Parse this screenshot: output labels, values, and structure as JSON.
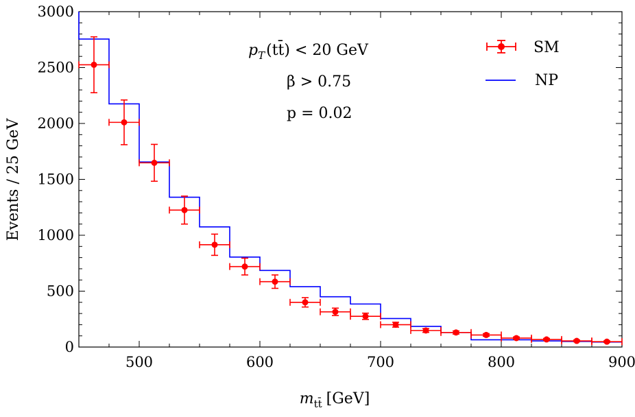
{
  "chart_data": {
    "type": "scatter",
    "title": "",
    "xlabel": "m",
    "xlabel_subscript": "tt̄",
    "xlabel_unit": "[GeV]",
    "ylabel": "Events / 25 GeV",
    "xlim": [
      450,
      900
    ],
    "ylim": [
      0,
      3000
    ],
    "x_ticks": [
      500,
      600,
      700,
      800,
      900
    ],
    "y_ticks": [
      0,
      500,
      1000,
      1500,
      2000,
      2500,
      3000
    ],
    "grid": false,
    "legend_position": "top-right",
    "annotations": {
      "cut1": "p",
      "cut1_sub": "T",
      "cut1_arg": "(tt̄) < 20 GeV",
      "cut2": "β > 0.75",
      "cut3": "p = 0.02"
    },
    "series": [
      {
        "name": "SM",
        "kind": "points_with_errors",
        "color": "#ff0000",
        "x": [
          462.5,
          487.5,
          512.5,
          537.5,
          562.5,
          587.5,
          612.5,
          637.5,
          662.5,
          687.5,
          712.5,
          737.5,
          762.5,
          787.5,
          812.5,
          837.5,
          862.5,
          887.5
        ],
        "y": [
          2525,
          2010,
          1648,
          1225,
          915,
          720,
          585,
          400,
          315,
          275,
          200,
          148,
          130,
          108,
          80,
          68,
          55,
          48
        ],
        "y_err": [
          250,
          200,
          165,
          125,
          95,
          75,
          60,
          42,
          33,
          28,
          22,
          17,
          14,
          12,
          10,
          9,
          8,
          7
        ],
        "x_halfwidth": 12.5
      },
      {
        "name": "NP",
        "kind": "step",
        "color": "#0000ff",
        "bin_edges": [
          450,
          475,
          500,
          525,
          550,
          575,
          600,
          625,
          650,
          675,
          700,
          725,
          750,
          775,
          800,
          825,
          850,
          875,
          900
        ],
        "values": [
          2755,
          2175,
          1655,
          1340,
          1075,
          805,
          685,
          540,
          450,
          385,
          255,
          185,
          130,
          65,
          65,
          55,
          50,
          45
        ]
      }
    ]
  }
}
